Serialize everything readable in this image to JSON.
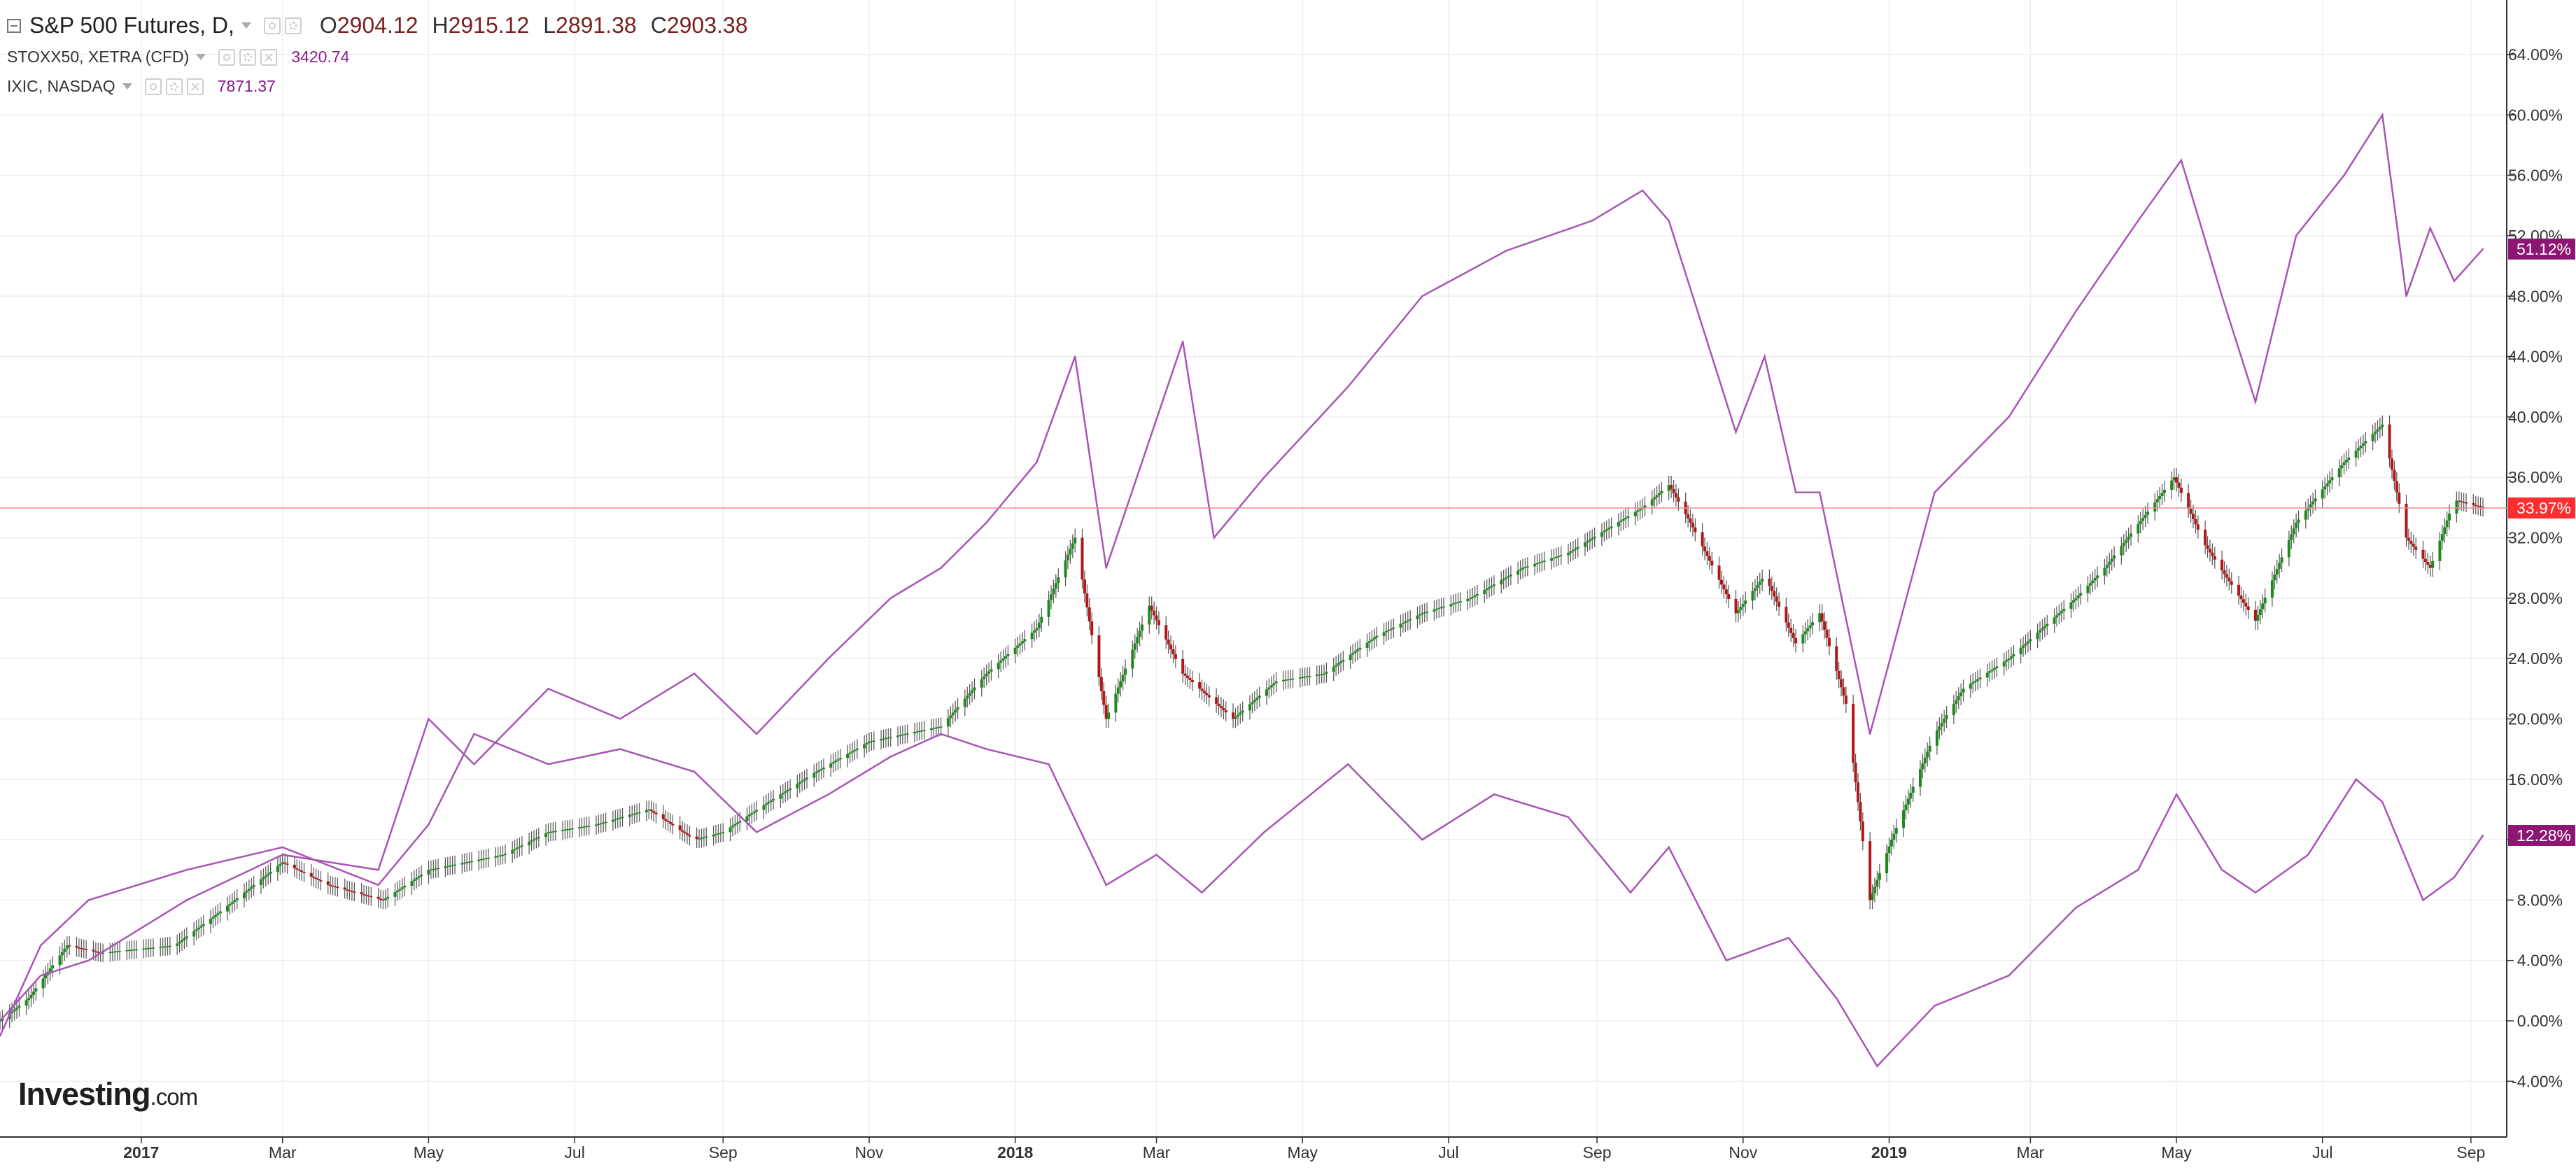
{
  "legend": {
    "main": {
      "symbol": "S&P 500 Futures, D,",
      "open_label": "O",
      "open": "2904.12",
      "high_label": "H",
      "high": "2915.12",
      "low_label": "L",
      "low": "2891.38",
      "close_label": "C",
      "close": "2903.38"
    },
    "compare": [
      {
        "symbol": "STOXX50, XETRA (CFD)",
        "value": "3420.74"
      },
      {
        "symbol": "IXIC, NASDAQ",
        "value": "7871.37"
      }
    ]
  },
  "brand": {
    "main": "Investing",
    "suffix": ".com"
  },
  "colors": {
    "up": "#1e8a1e",
    "down": "#b01818",
    "compare": "#a855b5",
    "price_line": "#f08a8a",
    "price_badge": "#ff2d2d",
    "nasdaq_badge": "#8e1673",
    "stoxx_badge": "#8e1673",
    "grid": "#eeeeee",
    "axis": "#333333"
  },
  "chart_data": {
    "type": "line",
    "y_axis": {
      "side": "right",
      "unit": "%",
      "ylim": [
        -6,
        66
      ],
      "ticks": [
        "64.00%",
        "60.00%",
        "56.00%",
        "52.00%",
        "48.00%",
        "44.00%",
        "40.00%",
        "36.00%",
        "32.00%",
        "28.00%",
        "24.00%",
        "20.00%",
        "16.00%",
        "12.00%",
        "8.00%",
        "4.00%",
        "0.00%",
        "-4.00%"
      ],
      "tick_values": [
        64,
        60,
        56,
        52,
        48,
        44,
        40,
        36,
        32,
        28,
        24,
        20,
        16,
        12,
        8,
        4,
        0,
        -4
      ]
    },
    "x_axis": {
      "labels": [
        "2017",
        "Mar",
        "May",
        "Jul",
        "Sep",
        "Nov",
        "2018",
        "Mar",
        "May",
        "Jul",
        "Sep",
        "Nov",
        "2019",
        "Mar",
        "May",
        "Jul",
        "Sep"
      ],
      "label_dates": [
        "2017-01-01",
        "2017-03-01",
        "2017-05-01",
        "2017-07-01",
        "2017-09-01",
        "2017-11-01",
        "2018-01-01",
        "2018-03-01",
        "2018-05-01",
        "2018-07-01",
        "2018-09-01",
        "2018-11-01",
        "2019-01-01",
        "2019-03-01",
        "2019-05-01",
        "2019-07-01",
        "2019-09-01"
      ],
      "bold": [
        "2017",
        "2018",
        "2019"
      ],
      "xlim": [
        "2016-11-03",
        "2019-09-06"
      ]
    },
    "grid": true,
    "series": [
      {
        "name": "S&P 500 Futures",
        "style": "candlestick",
        "x": [
          "2016-11-03",
          "2016-11-15",
          "2016-12-01",
          "2016-12-15",
          "2017-01-15",
          "2017-02-01",
          "2017-03-01",
          "2017-03-20",
          "2017-04-12",
          "2017-05-01",
          "2017-06-01",
          "2017-06-20",
          "2017-07-10",
          "2017-08-01",
          "2017-08-20",
          "2017-09-01",
          "2017-09-20",
          "2017-10-10",
          "2017-11-01",
          "2017-12-01",
          "2017-12-20",
          "2018-01-10",
          "2018-01-26",
          "2018-02-08",
          "2018-02-26",
          "2018-03-12",
          "2018-04-02",
          "2018-04-20",
          "2018-05-10",
          "2018-06-01",
          "2018-06-20",
          "2018-07-10",
          "2018-08-01",
          "2018-08-20",
          "2018-09-20",
          "2018-10-01",
          "2018-10-10",
          "2018-10-29",
          "2018-11-10",
          "2018-11-23",
          "2018-12-03",
          "2018-12-14",
          "2018-12-24",
          "2019-01-02",
          "2019-01-20",
          "2019-02-01",
          "2019-02-20",
          "2019-03-20",
          "2019-04-01",
          "2019-04-30",
          "2019-05-13",
          "2019-06-03",
          "2019-06-20",
          "2019-07-10",
          "2019-07-26",
          "2019-08-05",
          "2019-08-15",
          "2019-08-25",
          "2019-09-06"
        ],
        "values": [
          0.0,
          1.5,
          5.0,
          4.5,
          5.0,
          7.0,
          10.5,
          9.0,
          8.0,
          10.0,
          11.0,
          12.5,
          13.0,
          14.0,
          12.0,
          12.5,
          14.5,
          16.5,
          18.5,
          19.5,
          23.0,
          26.0,
          32.0,
          20.0,
          27.5,
          23.0,
          20.0,
          22.5,
          23.0,
          25.5,
          27.0,
          28.0,
          30.0,
          31.0,
          34.0,
          35.5,
          33.0,
          27.0,
          29.5,
          25.0,
          27.0,
          21.0,
          8.0,
          12.0,
          19.0,
          22.0,
          24.0,
          28.0,
          30.0,
          36.0,
          31.5,
          26.5,
          33.0,
          37.0,
          39.5,
          32.0,
          30.0,
          34.5,
          34.0
        ]
      },
      {
        "name": "STOXX50, XETRA (CFD)",
        "style": "line",
        "last_label": "12.28%",
        "x": [
          "2016-11-03",
          "2016-11-20",
          "2016-12-10",
          "2017-01-20",
          "2017-03-01",
          "2017-04-10",
          "2017-05-01",
          "2017-05-20",
          "2017-06-20",
          "2017-07-20",
          "2017-08-20",
          "2017-09-15",
          "2017-10-15",
          "2017-11-10",
          "2017-12-01",
          "2017-12-20",
          "2018-01-15",
          "2018-02-08",
          "2018-03-01",
          "2018-03-20",
          "2018-04-15",
          "2018-05-20",
          "2018-06-20",
          "2018-07-20",
          "2018-08-20",
          "2018-09-15",
          "2018-10-01",
          "2018-10-25",
          "2018-11-20",
          "2018-12-10",
          "2018-12-27",
          "2019-01-20",
          "2019-02-20",
          "2019-03-20",
          "2019-04-15",
          "2019-05-01",
          "2019-05-20",
          "2019-06-03",
          "2019-06-25",
          "2019-07-15",
          "2019-07-26",
          "2019-08-12",
          "2019-08-25",
          "2019-09-06"
        ],
        "values": [
          -1.0,
          5.0,
          8.0,
          10.0,
          11.5,
          9.0,
          13.0,
          19.0,
          17.0,
          18.0,
          16.5,
          12.5,
          15.0,
          17.5,
          19.0,
          18.0,
          17.0,
          9.0,
          11.0,
          8.5,
          12.5,
          17.0,
          12.0,
          15.0,
          13.5,
          8.5,
          11.5,
          4.0,
          5.5,
          1.5,
          -3.0,
          1.0,
          3.0,
          7.5,
          10.0,
          15.0,
          10.0,
          8.5,
          11.0,
          16.0,
          14.5,
          8.0,
          9.5,
          12.28
        ]
      },
      {
        "name": "IXIC, NASDAQ",
        "style": "line",
        "last_label": "51.12%",
        "x": [
          "2016-11-03",
          "2016-11-20",
          "2016-12-10",
          "2017-01-20",
          "2017-03-01",
          "2017-04-10",
          "2017-05-01",
          "2017-05-20",
          "2017-06-20",
          "2017-07-20",
          "2017-08-20",
          "2017-09-15",
          "2017-10-15",
          "2017-11-10",
          "2017-12-01",
          "2017-12-20",
          "2018-01-10",
          "2018-01-26",
          "2018-02-08",
          "2018-03-12",
          "2018-03-25",
          "2018-04-15",
          "2018-05-20",
          "2018-06-20",
          "2018-07-25",
          "2018-08-30",
          "2018-09-20",
          "2018-10-01",
          "2018-10-29",
          "2018-11-10",
          "2018-11-23",
          "2018-12-03",
          "2018-12-24",
          "2019-01-20",
          "2019-02-20",
          "2019-03-20",
          "2019-04-15",
          "2019-05-03",
          "2019-05-20",
          "2019-06-03",
          "2019-06-20",
          "2019-07-10",
          "2019-07-26",
          "2019-08-05",
          "2019-08-15",
          "2019-08-25",
          "2019-09-06"
        ],
        "values": [
          0.0,
          3.0,
          4.0,
          8.0,
          11.0,
          10.0,
          20.0,
          17.0,
          22.0,
          20.0,
          23.0,
          19.0,
          24.0,
          28.0,
          30.0,
          33.0,
          37.0,
          44.0,
          30.0,
          45.0,
          32.0,
          36.0,
          42.0,
          48.0,
          51.0,
          53.0,
          55.0,
          53.0,
          39.0,
          44.0,
          35.0,
          35.0,
          19.0,
          35.0,
          40.0,
          47.0,
          53.0,
          57.0,
          48.0,
          41.0,
          52.0,
          56.0,
          60.0,
          48.0,
          52.5,
          49.0,
          51.12
        ]
      }
    ],
    "current_price_line": {
      "value": 33.97,
      "label": "33.97%"
    }
  }
}
